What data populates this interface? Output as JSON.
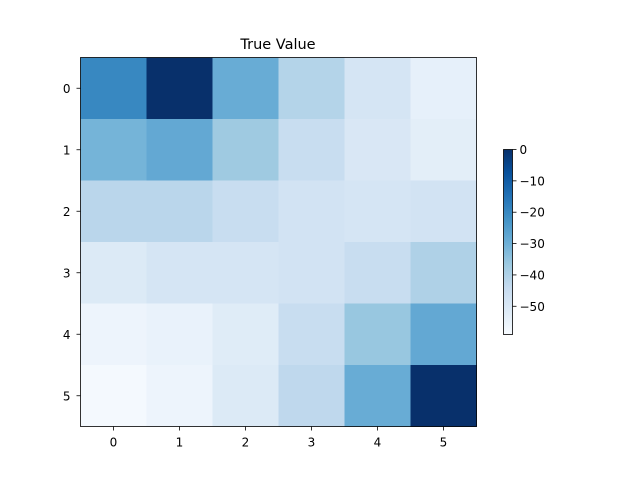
{
  "chart_data": {
    "type": "heatmap",
    "title": "True Value",
    "xlabel": "",
    "ylabel": "",
    "x_categories": [
      "0",
      "1",
      "2",
      "3",
      "4",
      "5"
    ],
    "y_categories": [
      "0",
      "1",
      "2",
      "3",
      "4",
      "5"
    ],
    "values": [
      [
        -20,
        0,
        -29,
        -41,
        -49,
        -54
      ],
      [
        -31,
        -28,
        -37,
        -45,
        -50,
        -53
      ],
      [
        -42,
        -42,
        -45,
        -48,
        -49,
        -48
      ],
      [
        -51,
        -49,
        -49,
        -48,
        -45,
        -40
      ],
      [
        -56,
        -55,
        -52,
        -45,
        -36,
        -28
      ],
      [
        -58,
        -56,
        -51,
        -43,
        -29,
        0
      ]
    ],
    "colormap": "Blues",
    "vmin": -59,
    "vmax": 0,
    "colorbar": {
      "ticks": [
        0,
        -10,
        -20,
        -30,
        -40,
        -50
      ],
      "tick_labels": [
        "0",
        "−10",
        "−20",
        "−30",
        "−40",
        "−50"
      ]
    },
    "grid": false,
    "legend": "none",
    "colors": {
      "low": "#f7fbff",
      "high": "#08306b"
    }
  }
}
